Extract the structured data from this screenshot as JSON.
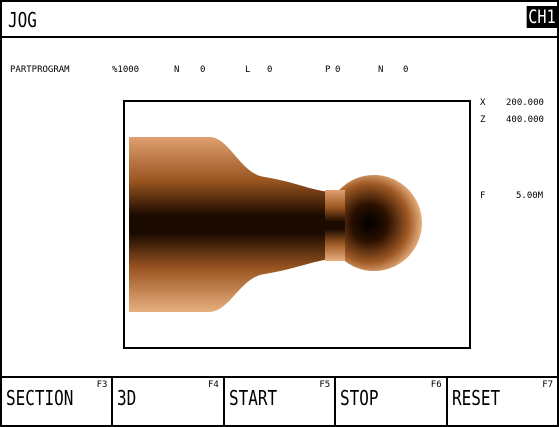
{
  "header": {
    "mode": "JOG",
    "channel": "CH1"
  },
  "program_line": {
    "label": "PARTPROGRAM",
    "program": "%1000",
    "n1_label": "N",
    "n1_value": "0",
    "l_label": "L",
    "l_value": "0",
    "p_label": "P",
    "p_value": "0",
    "n2_label": "N",
    "n2_value": "0"
  },
  "position": [
    {
      "axis": "X",
      "value": "200.000"
    },
    {
      "axis": "Z",
      "value": "400.000"
    }
  ],
  "feed": {
    "label": "F",
    "value": "5.00M"
  },
  "softkeys": [
    {
      "label": "SECTION",
      "key": "F3"
    },
    {
      "label": "3D",
      "key": "F4"
    },
    {
      "label": "START",
      "key": "F5"
    },
    {
      "label": "STOP",
      "key": "F6"
    },
    {
      "label": "RESET",
      "key": "F7"
    }
  ]
}
